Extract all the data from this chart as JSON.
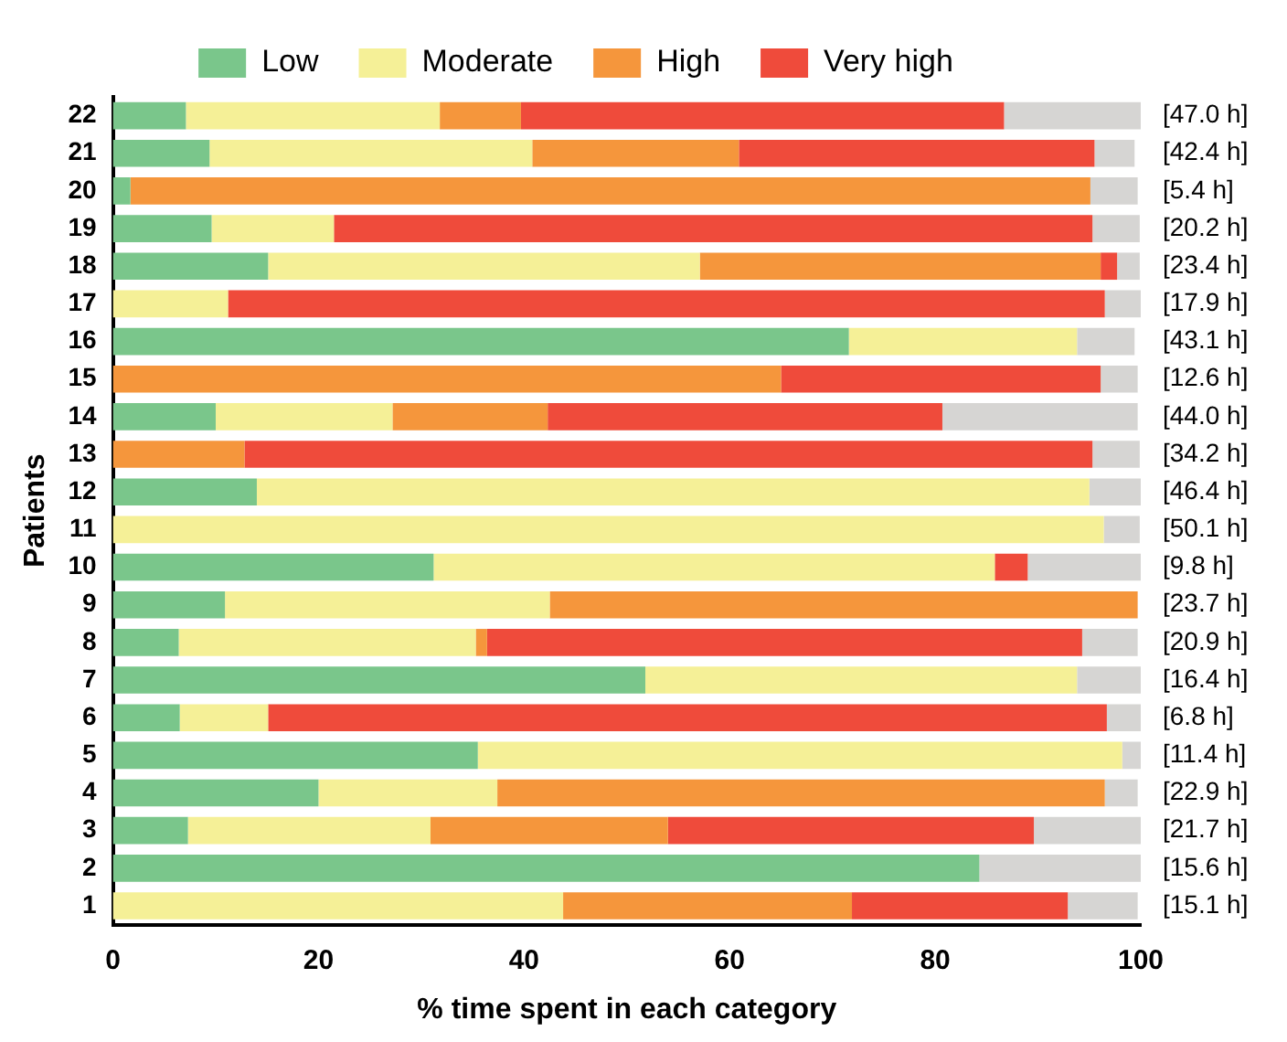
{
  "chart_data": {
    "type": "bar",
    "orientation": "horizontal",
    "stacked": true,
    "xlabel": "% time spent in each category",
    "ylabel": "Patients",
    "legend": "top",
    "grid": false,
    "xlim": [
      0,
      100
    ],
    "xticks": [
      0,
      20,
      40,
      60,
      80,
      100
    ],
    "categories": [
      "22",
      "21",
      "20",
      "19",
      "18",
      "17",
      "16",
      "15",
      "14",
      "13",
      "12",
      "11",
      "10",
      "9",
      "8",
      "7",
      "6",
      "5",
      "4",
      "3",
      "2",
      "1"
    ],
    "series": [
      {
        "name": "Low",
        "color": "#7ac68b",
        "values": [
          7.1,
          9.4,
          1.7,
          9.6,
          15.1,
          0,
          71.6,
          0,
          10.0,
          0,
          14.0,
          0,
          31.2,
          10.9,
          6.4,
          51.8,
          6.5,
          35.5,
          20.0,
          7.3,
          84.3,
          0
        ]
      },
      {
        "name": "Moderate",
        "color": "#f5f097",
        "values": [
          24.7,
          31.4,
          0,
          11.9,
          42.0,
          11.2,
          22.2,
          0,
          17.2,
          0,
          81.0,
          96.4,
          54.6,
          31.6,
          28.9,
          42.0,
          8.6,
          62.7,
          17.4,
          23.6,
          0,
          43.8
        ]
      },
      {
        "name": "High",
        "color": "#f5963c",
        "values": [
          7.9,
          20.1,
          93.4,
          0,
          39.0,
          0,
          0,
          65.0,
          15.1,
          12.8,
          0,
          0,
          0,
          57.2,
          1.1,
          0,
          0,
          0,
          59.1,
          23.1,
          0,
          28.1
        ]
      },
      {
        "name": "Very high",
        "color": "#ef4b3b",
        "values": [
          47.0,
          34.6,
          0,
          73.8,
          1.6,
          85.3,
          0,
          31.1,
          38.4,
          82.5,
          0,
          0,
          3.2,
          0,
          57.9,
          0,
          81.6,
          0,
          0,
          35.6,
          0,
          21.0
        ]
      },
      {
        "color": "#d6d5d3",
        "values": [
          13.3,
          3.9,
          4.6,
          4.6,
          2.2,
          3.5,
          5.6,
          3.6,
          19.0,
          4.6,
          5.0,
          3.5,
          11.0,
          0,
          5.4,
          6.2,
          3.3,
          1.8,
          3.2,
          10.4,
          15.7,
          6.8
        ]
      }
    ],
    "annotations": [
      "[47.0 h]",
      "[42.4 h]",
      "[5.4 h]",
      "[20.2 h]",
      "[23.4 h]",
      "[17.9 h]",
      "[43.1 h]",
      "[12.6 h]",
      "[44.0 h]",
      "[34.2 h]",
      "[46.4 h]",
      "[50.1 h]",
      "[9.8 h]",
      "[23.7 h]",
      "[20.9 h]",
      "[16.4 h]",
      "[6.8 h]",
      "[11.4 h]",
      "[22.9 h]",
      "[21.7 h]",
      "[15.6 h]",
      "[15.1 h]"
    ]
  }
}
